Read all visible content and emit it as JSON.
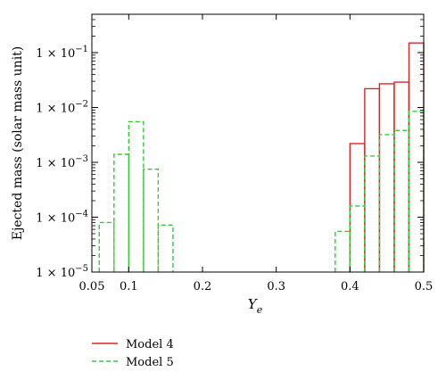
{
  "chart_data": {
    "type": "histogram",
    "title": "",
    "xlabel": "Y_e",
    "ylabel": "Ejected mass (solar mass unit)",
    "xlim": [
      0.05,
      0.5
    ],
    "ylim": [
      1e-05,
      0.5
    ],
    "yscale": "log",
    "grid": false,
    "legend_position": "bottom-left-below-plot",
    "x_ticks": [
      {
        "value": 0.05,
        "label": "0.05"
      },
      {
        "value": 0.1,
        "label": "0.1"
      },
      {
        "value": 0.2,
        "label": "0.2"
      },
      {
        "value": 0.3,
        "label": "0.3"
      },
      {
        "value": 0.4,
        "label": "0.4"
      },
      {
        "value": 0.5,
        "label": "0.5"
      }
    ],
    "y_ticks": [
      {
        "value": 1e-05,
        "mant": "1 × 10",
        "exp": "−5"
      },
      {
        "value": 0.0001,
        "mant": "1 × 10",
        "exp": "−4"
      },
      {
        "value": 0.001,
        "mant": "1 × 10",
        "exp": "−3"
      },
      {
        "value": 0.01,
        "mant": "1 × 10",
        "exp": "−2"
      },
      {
        "value": 0.1,
        "mant": "1 × 10",
        "exp": "−1"
      }
    ],
    "series": [
      {
        "name": "Model 4",
        "color": "#d62728",
        "style": "solid",
        "bins": [
          {
            "x0": 0.4,
            "x1": 0.42,
            "value": 0.0022
          },
          {
            "x0": 0.42,
            "x1": 0.44,
            "value": 0.022
          },
          {
            "x0": 0.44,
            "x1": 0.46,
            "value": 0.027
          },
          {
            "x0": 0.46,
            "x1": 0.48,
            "value": 0.029
          },
          {
            "x0": 0.48,
            "x1": 0.5,
            "value": 0.15
          }
        ]
      },
      {
        "name": "Model 5",
        "color": "#33cc33",
        "style": "dashed",
        "bins": [
          {
            "x0": 0.06,
            "x1": 0.08,
            "value": 8e-05
          },
          {
            "x0": 0.08,
            "x1": 0.1,
            "value": 0.0014
          },
          {
            "x0": 0.1,
            "x1": 0.12,
            "value": 0.0055
          },
          {
            "x0": 0.12,
            "x1": 0.14,
            "value": 0.00075
          },
          {
            "x0": 0.14,
            "x1": 0.16,
            "value": 7.2e-05
          },
          {
            "x0": 0.38,
            "x1": 0.4,
            "value": 5.5e-05
          },
          {
            "x0": 0.4,
            "x1": 0.42,
            "value": 0.00016
          },
          {
            "x0": 0.42,
            "x1": 0.44,
            "value": 0.0013
          },
          {
            "x0": 0.44,
            "x1": 0.46,
            "value": 0.0032
          },
          {
            "x0": 0.46,
            "x1": 0.48,
            "value": 0.0038
          },
          {
            "x0": 0.48,
            "x1": 0.5,
            "value": 0.0085
          }
        ]
      }
    ]
  }
}
